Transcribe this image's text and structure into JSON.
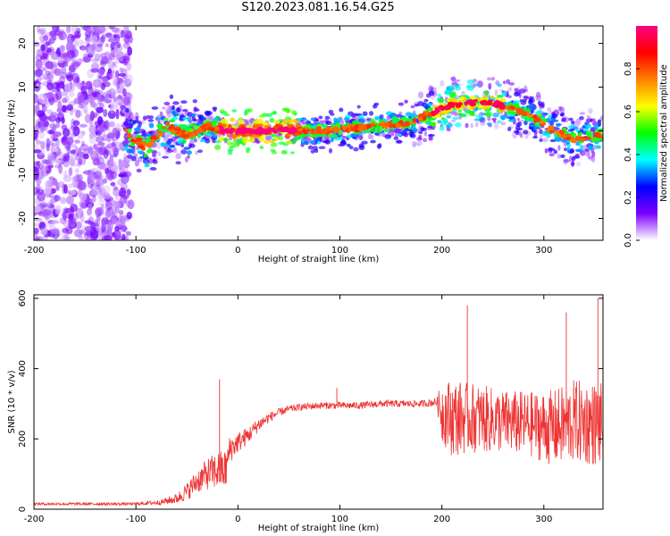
{
  "title": "S120.2023.081.16.54.G25",
  "chart_data": [
    {
      "type": "heatmap",
      "xlabel": "Height of straight line (km)",
      "ylabel": "Frequency (Hz)",
      "xlim": [
        -200,
        358
      ],
      "ylim": [
        -25,
        24
      ],
      "xticks": [
        -200,
        -100,
        0,
        100,
        200,
        300
      ],
      "yticks": [
        -20,
        -10,
        0,
        10,
        20
      ],
      "colorbar": {
        "label": "Normalized spectral amplitude",
        "range": [
          0,
          1
        ],
        "ticks": [
          "0.0",
          "0.2",
          "0.4",
          "0.6",
          "0.8"
        ],
        "colormap": [
          "#ffffff",
          "#7b00ff",
          "#0000ff",
          "#00ffff",
          "#00ff00",
          "#ffff00",
          "#ff8000",
          "#ff0000",
          "#ff0080"
        ]
      },
      "ridge": {
        "x": [
          -110,
          -90,
          -70,
          -50,
          -30,
          -10,
          10,
          30,
          50,
          70,
          90,
          110,
          130,
          150,
          170,
          190,
          210,
          230,
          250,
          270,
          290,
          310,
          330,
          350
        ],
        "y": [
          0,
          -4,
          1,
          -1,
          1,
          0,
          0,
          0,
          0,
          0,
          0,
          0.5,
          1,
          1.5,
          2,
          4,
          6,
          6.5,
          6.5,
          5,
          3,
          0,
          -2,
          -1
        ]
      }
    },
    {
      "type": "line",
      "xlabel": "Height of straight line (km)",
      "ylabel": "SNR (10 * v/v)",
      "xlim": [
        -200,
        358
      ],
      "ylim": [
        0,
        610
      ],
      "xticks": [
        -200,
        -100,
        0,
        100,
        200,
        300
      ],
      "yticks": [
        0,
        200,
        400,
        600
      ],
      "color": "#ee3333",
      "profile": {
        "x": [
          -200,
          -100,
          -75,
          -60,
          -50,
          -40,
          -30,
          -20,
          -12,
          -8,
          0,
          10,
          20,
          30,
          40,
          50,
          60,
          80,
          100,
          120,
          140,
          160,
          180,
          195,
          200,
          210,
          230,
          260,
          290,
          310,
          330,
          358
        ],
        "y": [
          15,
          15,
          20,
          30,
          50,
          80,
          100,
          110,
          110,
          170,
          190,
          210,
          240,
          260,
          275,
          285,
          290,
          295,
          295,
          295,
          300,
          300,
          300,
          305,
          280,
          260,
          260,
          250,
          240,
          230,
          250,
          240
        ],
        "noise": [
          4,
          4,
          8,
          15,
          25,
          35,
          45,
          55,
          60,
          40,
          30,
          25,
          20,
          15,
          12,
          10,
          10,
          10,
          10,
          10,
          10,
          10,
          10,
          12,
          90,
          110,
          100,
          90,
          95,
          110,
          120,
          120
        ]
      },
      "spikes": [
        {
          "x": -18,
          "y": 370
        },
        {
          "x": 97,
          "y": 345
        },
        {
          "x": 225,
          "y": 580
        },
        {
          "x": 322,
          "y": 560
        },
        {
          "x": 353,
          "y": 600
        }
      ]
    }
  ]
}
